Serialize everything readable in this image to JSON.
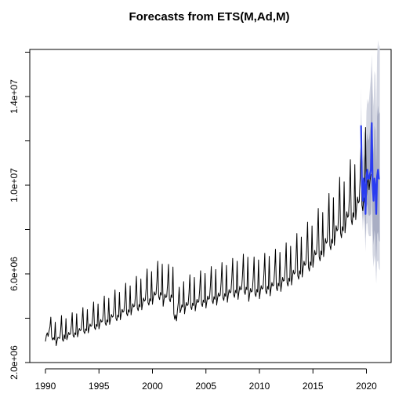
{
  "chart_data": {
    "type": "line",
    "title": "Forecasts from ETS(M,Ad,M)",
    "xlabel": "",
    "ylabel": "",
    "xlim": [
      1990,
      2021.5
    ],
    "ylim": [
      2000000,
      16000000
    ],
    "xticks": [
      1990,
      1995,
      2000,
      2005,
      2010,
      2015,
      2020
    ],
    "xtick_labels": [
      "1990",
      "1995",
      "2000",
      "2005",
      "2010",
      "2015",
      "2020"
    ],
    "yticks": [
      2000000,
      6000000,
      10000000,
      14000000
    ],
    "ytick_labels": [
      "2.0e+06",
      "6.0e+06",
      "1.0e+07",
      "1.4e+07"
    ],
    "grid": false,
    "frequency": 12,
    "series": [
      {
        "role": "observed",
        "color": "#000000",
        "start": 1990.0,
        "values": [
          2950000,
          3220000,
          3340000,
          3180000,
          3420000,
          3600000,
          4050000,
          3150000,
          3020000,
          3120000,
          3030000,
          3820000,
          2760000,
          2980000,
          3140000,
          3110000,
          3090000,
          3450000,
          4120000,
          3050000,
          2960000,
          3250000,
          3070000,
          3980000,
          3030000,
          3190000,
          3360000,
          3260000,
          3290000,
          3670000,
          4250000,
          3220000,
          3140000,
          3340000,
          3260000,
          4200000,
          3160000,
          3370000,
          3540000,
          3440000,
          3470000,
          3870000,
          4480000,
          3400000,
          3310000,
          3520000,
          3440000,
          4390000,
          3340000,
          3560000,
          3740000,
          3630000,
          3670000,
          4080000,
          4730000,
          3580000,
          3490000,
          3720000,
          3630000,
          4640000,
          3520000,
          3750000,
          3940000,
          3830000,
          3870000,
          4310000,
          5000000,
          3780000,
          3680000,
          3920000,
          3830000,
          4900000,
          3720000,
          3970000,
          4170000,
          4050000,
          4090000,
          4550000,
          5280000,
          4000000,
          3890000,
          4140000,
          4050000,
          5170000,
          3930000,
          4190000,
          4400000,
          4270000,
          4320000,
          4810000,
          5580000,
          4220000,
          4110000,
          4380000,
          4270000,
          5460000,
          4150000,
          4430000,
          4650000,
          4510000,
          4560000,
          5080000,
          5890000,
          4460000,
          4340000,
          4620000,
          4510000,
          5770000,
          4380000,
          4670000,
          4910000,
          4770000,
          4820000,
          5370000,
          6220000,
          4710000,
          4590000,
          4880000,
          4770000,
          6100000,
          4630000,
          4940000,
          5190000,
          5040000,
          5090000,
          5670000,
          6570000,
          4970000,
          4840000,
          5160000,
          5040000,
          6440000,
          4540000,
          4840000,
          5080000,
          4930000,
          4980000,
          5550000,
          6430000,
          4870000,
          4740000,
          5050000,
          4930000,
          6310000,
          4200000,
          3950000,
          4150000,
          3880000,
          4350000,
          4700000,
          5400000,
          4250000,
          4380000,
          4600000,
          4500000,
          5650000,
          4200000,
          4480000,
          4710000,
          4570000,
          4620000,
          5150000,
          5960000,
          4510000,
          4390000,
          4680000,
          4570000,
          5840000,
          4330000,
          4610000,
          4850000,
          4710000,
          4760000,
          5300000,
          6140000,
          4650000,
          4530000,
          4820000,
          4710000,
          6020000,
          4460000,
          4750000,
          5000000,
          4850000,
          4900000,
          5460000,
          6330000,
          4790000,
          4660000,
          4970000,
          4850000,
          6200000,
          4590000,
          4890000,
          5140000,
          4990000,
          5040000,
          5620000,
          6510000,
          4930000,
          4800000,
          5110000,
          4990000,
          6380000,
          4720000,
          5030000,
          5290000,
          5140000,
          5190000,
          5780000,
          6700000,
          5070000,
          4940000,
          5260000,
          5140000,
          6570000,
          4850000,
          5170000,
          5440000,
          5280000,
          5330000,
          5940000,
          6890000,
          5210000,
          5070000,
          5400000,
          5280000,
          6750000,
          4760000,
          5080000,
          5340000,
          5180000,
          5230000,
          5830000,
          6760000,
          5110000,
          4980000,
          5300000,
          5180000,
          6630000,
          4880000,
          5210000,
          5470000,
          5310000,
          5360000,
          5980000,
          6930000,
          5240000,
          5100000,
          5440000,
          5310000,
          6790000,
          5010000,
          5340000,
          5610000,
          5450000,
          5500000,
          6140000,
          7110000,
          5380000,
          5240000,
          5580000,
          5450000,
          6970000,
          5210000,
          5550000,
          5840000,
          5670000,
          5720000,
          6380000,
          7400000,
          5600000,
          5450000,
          5810000,
          5670000,
          7250000,
          5500000,
          5870000,
          6170000,
          5990000,
          6050000,
          6740000,
          7820000,
          5920000,
          5760000,
          6140000,
          5990000,
          7660000,
          5860000,
          6250000,
          6570000,
          6380000,
          6440000,
          7180000,
          8330000,
          6300000,
          6130000,
          6540000,
          6380000,
          8160000,
          6300000,
          6720000,
          7060000,
          6860000,
          6920000,
          7720000,
          8950000,
          6770000,
          6590000,
          7030000,
          6860000,
          8770000,
          6780000,
          7230000,
          7600000,
          7380000,
          7450000,
          8310000,
          9630000,
          7290000,
          7090000,
          7560000,
          7380000,
          9440000,
          7290000,
          7770000,
          8170000,
          7940000,
          8010000,
          8930000,
          10360000,
          7840000,
          7630000,
          8130000,
          7940000,
          10150000,
          7850000,
          8370000,
          8800000,
          8550000,
          8630000,
          9620000,
          11150000,
          8440000,
          8220000,
          8760000,
          8550000,
          10930000,
          8450000,
          9010000,
          9470000,
          9200000,
          9280000,
          10360000,
          12010000,
          9090000,
          8850000,
          9430000,
          9200000,
          12600000,
          9500000,
          10100000,
          10300000,
          9800000,
          10200000,
          10500000
        ]
      },
      {
        "role": "forecast",
        "color": "#2a3cf0",
        "start": 2019.5,
        "values": [
          12700000,
          10000000,
          9300000,
          10300000,
          10000000,
          8700000,
          10400000,
          10700000,
          10300000,
          10300000,
          10500000,
          10700000,
          12800000,
          10000000,
          9300000,
          10300000,
          10000000,
          8700000,
          10400000,
          10700000,
          10300000,
          10300000
        ],
        "lower80": [
          11900000,
          9200000,
          8450000,
          9250000,
          8850000,
          7600000,
          9000000,
          9150000,
          8700000,
          8600000,
          8650000,
          8700000,
          10300000,
          7950000,
          7300000,
          7980000,
          7650000,
          6580000,
          7780000,
          7900000,
          7520000,
          7440000
        ],
        "upper80": [
          13550000,
          10850000,
          10200000,
          11400000,
          11200000,
          9850000,
          11900000,
          12350000,
          12000000,
          12100000,
          12450000,
          12800000,
          15400000,
          12150000,
          11400000,
          12700000,
          12450000,
          10900000,
          13100000,
          13600000,
          13200000,
          13300000
        ],
        "lower95": [
          11450000,
          8750000,
          7950000,
          8650000,
          8200000,
          7000000,
          8250000,
          8300000,
          7850000,
          7700000,
          7700000,
          7700000,
          9050000,
          6900000,
          6300000,
          6850000,
          6500000,
          5550000,
          6550000,
          6600000,
          6250000,
          6150000
        ],
        "upper95": [
          14450000,
          11650000,
          11050000,
          12450000,
          12350000,
          10950000,
          13300000,
          13900000,
          13650000,
          13900000,
          14400000,
          14900000,
          15900000,
          14350000,
          13550000,
          15150000,
          14950000,
          13150000,
          15850000,
          16550000,
          16150000,
          16350000
        ]
      }
    ]
  }
}
